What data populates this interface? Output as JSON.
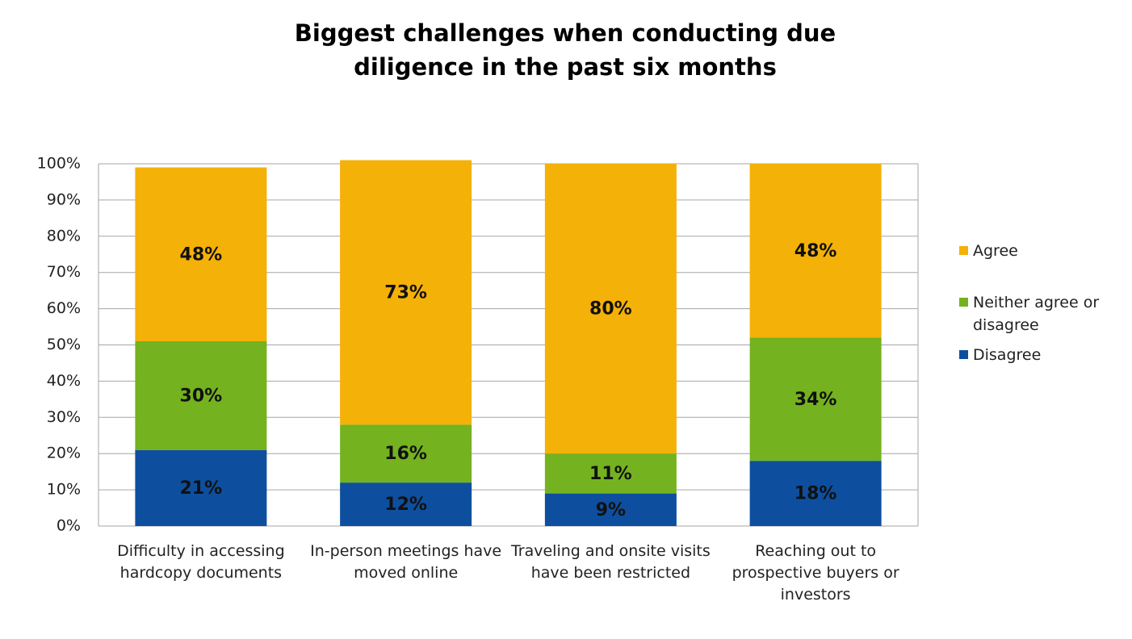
{
  "chart_data": {
    "type": "stacked-bar",
    "title": "Biggest challenges when conducting due diligence in the past six months",
    "categories": [
      "Difficulty in accessing hardcopy documents",
      "In-person meetings have moved online",
      "Traveling and onsite visits have been restricted",
      "Reaching out to prospective buyers or investors"
    ],
    "series": [
      {
        "name": "Disagree",
        "color": "#0d4f9e",
        "values": [
          21,
          12,
          9,
          18
        ],
        "value_labels": [
          "21%",
          "12%",
          "9%",
          "18%"
        ]
      },
      {
        "name": "Neither agree or disagree",
        "color": "#74b21f",
        "values": [
          30,
          16,
          11,
          34
        ],
        "value_labels": [
          "30%",
          "16%",
          "11%",
          "34%"
        ]
      },
      {
        "name": "Agree",
        "color": "#f4b107",
        "values": [
          48,
          73,
          80,
          48
        ],
        "value_labels": [
          "48%",
          "73%",
          "80%",
          "48%"
        ]
      }
    ],
    "ylim": [
      0,
      100
    ],
    "yticks": [
      {
        "value": 0,
        "label": "0%"
      },
      {
        "value": 10,
        "label": "10%"
      },
      {
        "value": 20,
        "label": "20%"
      },
      {
        "value": 30,
        "label": "30%"
      },
      {
        "value": 40,
        "label": "40%"
      },
      {
        "value": 50,
        "label": "50%"
      },
      {
        "value": 60,
        "label": "60%"
      },
      {
        "value": 70,
        "label": "70%"
      },
      {
        "value": 80,
        "label": "80%"
      },
      {
        "value": 90,
        "label": "90%"
      },
      {
        "value": 100,
        "label": "100%"
      }
    ],
    "grid": true,
    "legend": "right"
  }
}
